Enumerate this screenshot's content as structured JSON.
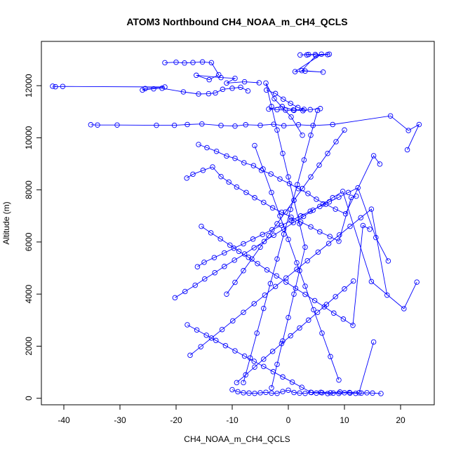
{
  "chart_data": {
    "type": "line",
    "title": "ATOM3 Northbound CH4_NOAA_m_CH4_QCLS",
    "xlabel": "CH4_NOAA_m_CH4_QCLS",
    "ylabel": "Altitude (m)",
    "xlim": [
      -44,
      26
    ],
    "ylim": [
      -250,
      13700
    ],
    "xticks": [
      -40,
      -30,
      -20,
      -10,
      0,
      10,
      20
    ],
    "yticks": [
      0,
      2000,
      4000,
      6000,
      8000,
      10000,
      12000
    ],
    "xtick_labels": [
      "-40",
      "-30",
      "-20",
      "-10",
      "0",
      "10",
      "20"
    ],
    "ytick_labels": [
      "0",
      "2000",
      "4000",
      "6000",
      "8000",
      "10000",
      "12000"
    ],
    "grid": false,
    "legend": "none",
    "marker": "open-circle",
    "color": "#0000ff",
    "series": [
      {
        "x": [
          4.8,
          2.1,
          3.6,
          7.0,
          5.9,
          1.2,
          3.0,
          6.2,
          2.4,
          4.9,
          7.3,
          3.3
        ],
        "y": [
          13200,
          13180,
          13200,
          13190,
          13210,
          12540,
          12560,
          12520,
          12580,
          13150,
          13210,
          13180
        ]
      },
      {
        "x": [
          -22.0,
          -20.0,
          -18.5,
          -17.0,
          -15.3,
          -13.7,
          -12.4,
          -14.1,
          -16.4,
          -12.0,
          -9.5,
          -11.0,
          -7.8,
          -5.2
        ],
        "y": [
          12880,
          12900,
          12870,
          12890,
          12910,
          12880,
          12420,
          12230,
          12400,
          12310,
          12280,
          12100,
          12150,
          12110
        ]
      },
      {
        "x": [
          -42.0,
          -41.5,
          -40.2,
          -22.0,
          -25.5,
          -26.0,
          -24.0,
          -22.5,
          -18.7,
          -16.0,
          -14.2,
          -13.0,
          -11.7,
          -10.0,
          -8.5,
          -7.2
        ],
        "y": [
          11980,
          11960,
          11970,
          11950,
          11890,
          11830,
          11880,
          11900,
          11760,
          11680,
          11690,
          11720,
          11860,
          11900,
          11940,
          11800
        ]
      },
      {
        "x": [
          -3.9,
          -2.3,
          -0.9,
          0.4,
          1.7,
          2.8,
          1.0,
          -0.5,
          -2.0,
          -3.5,
          -1.1,
          0.9,
          2.6,
          3.9,
          5.7
        ],
        "y": [
          11830,
          11700,
          11480,
          11320,
          11160,
          11090,
          11050,
          11060,
          11080,
          11100,
          11200,
          11070,
          11040,
          11080,
          11120
        ]
      },
      {
        "x": [
          -35.2,
          -34.0,
          -30.5,
          -23.5,
          -20.3,
          -18.0,
          -15.4,
          -12.0,
          -9.5,
          -7.6,
          -5.0,
          -2.6,
          -0.8,
          1.8,
          4.4,
          7.9,
          18.2,
          21.4,
          23.3,
          21.2
        ],
        "y": [
          10500,
          10490,
          10490,
          10480,
          10480,
          10510,
          10530,
          10470,
          10450,
          10500,
          10480,
          10520,
          10460,
          10500,
          10470,
          10510,
          10840,
          10280,
          10510,
          9540
        ]
      },
      {
        "x": [
          -16.0,
          -14.5,
          -12.8,
          -11.0,
          -9.5,
          -7.9,
          -6.2,
          -4.8,
          -3.1,
          -1.5,
          0.2,
          1.8,
          3.5,
          5.0,
          6.7,
          8.4,
          10.2,
          15.2,
          16.3
        ],
        "y": [
          9740,
          9620,
          9480,
          9300,
          9210,
          9040,
          8930,
          8750,
          8610,
          8420,
          8240,
          8050,
          7860,
          7640,
          7450,
          7260,
          7080,
          9310,
          8990
        ]
      },
      {
        "x": [
          -18.1,
          -17.0,
          -15.2,
          -13.5,
          -12.0,
          -10.6,
          -9.2,
          -7.5,
          -6.0,
          -4.4,
          -2.8,
          -1.2,
          0.5,
          2.2,
          4.0,
          5.6,
          7.4,
          9.0,
          11.2,
          12.1
        ],
        "y": [
          8450,
          8600,
          8750,
          8880,
          8510,
          8300,
          8110,
          7900,
          7700,
          7520,
          7310,
          7140,
          6950,
          6770,
          6580,
          6390,
          6210,
          6030,
          7710,
          7760
        ]
      },
      {
        "x": [
          -15.5,
          -13.8,
          -12.1,
          -10.4,
          -8.8,
          -7.1,
          -5.5,
          -3.8,
          -2.1,
          -0.4,
          1.3,
          3.0,
          4.7,
          6.4,
          8.1,
          9.8,
          11.5,
          13.3,
          14.5
        ],
        "y": [
          6600,
          6350,
          6120,
          5880,
          5640,
          5410,
          5170,
          4930,
          4700,
          4460,
          4220,
          3990,
          3750,
          3510,
          3270,
          3040,
          2800,
          6630,
          6490
        ]
      },
      {
        "x": [
          -16.2,
          -15.0,
          -13.2,
          -11.4,
          -9.7,
          -8.0,
          -6.3,
          -4.6,
          -2.9,
          -1.2,
          0.5,
          2.2,
          3.9,
          5.6,
          7.3,
          9.0,
          10.7,
          12.4,
          15.6,
          17.8
        ],
        "y": [
          5050,
          5220,
          5400,
          5580,
          5760,
          5930,
          6110,
          6290,
          6470,
          6640,
          6820,
          7000,
          7180,
          7360,
          7540,
          7720,
          7900,
          8080,
          6170,
          5270
        ]
      },
      {
        "x": [
          -20.2,
          -18.4,
          -16.6,
          -14.9,
          -13.1,
          -11.4,
          -9.6,
          -7.8,
          -6.1,
          -4.3,
          -2.6,
          -0.8,
          0.9,
          2.7,
          4.4,
          6.2,
          7.9,
          9.7,
          14.8,
          20.6,
          22.9
        ],
        "y": [
          3860,
          4100,
          4340,
          4580,
          4820,
          5060,
          5300,
          5540,
          5780,
          6020,
          6260,
          6500,
          6740,
          6980,
          7220,
          7460,
          7700,
          7940,
          4480,
          3440,
          4460
        ]
      },
      {
        "x": [
          -17.5,
          -15.6,
          -13.7,
          -11.8,
          -9.9,
          -8.0,
          -6.1,
          -4.2,
          -2.3,
          -0.4,
          1.5,
          3.4,
          5.3,
          7.2,
          9.1,
          11.0,
          12.9,
          14.8,
          17.6
        ],
        "y": [
          1650,
          1980,
          2310,
          2640,
          2970,
          3300,
          3630,
          3960,
          4290,
          4620,
          4950,
          5280,
          5610,
          5940,
          6270,
          6600,
          6930,
          7260,
          3960
        ]
      },
      {
        "x": [
          -18.0,
          -16.3,
          -14.6,
          -12.9,
          -11.2,
          -9.5,
          -7.8,
          -6.1,
          -4.4,
          -2.7,
          -1.0,
          0.7,
          2.4,
          4.1,
          5.8,
          7.5,
          9.2,
          10.9,
          12.6,
          15.2
        ],
        "y": [
          2820,
          2620,
          2420,
          2220,
          2020,
          1820,
          1620,
          1420,
          1220,
          1020,
          820,
          620,
          420,
          220,
          230,
          210,
          240,
          220,
          210,
          2160
        ]
      },
      {
        "x": [
          -10.0,
          -9.0,
          -8.0,
          -7.0,
          -6.0,
          -5.0,
          -4.0,
          -3.0,
          -2.0,
          -1.0,
          0.0,
          1.0,
          2.0,
          3.0,
          4.0,
          5.0,
          6.0,
          7.0,
          8.0,
          9.0,
          10.0,
          11.0,
          12.0,
          13.0,
          14.0,
          15.0,
          16.5
        ],
        "y": [
          330,
          250,
          210,
          200,
          190,
          210,
          230,
          200,
          190,
          260,
          310,
          220,
          200,
          190,
          230,
          200,
          210,
          180,
          200,
          190,
          210,
          200,
          190,
          200,
          210,
          200,
          180
        ]
      },
      {
        "x": [
          -9.2,
          -7.6,
          -6.0,
          -4.4,
          -2.8,
          -1.2,
          0.4,
          2.0,
          3.6,
          5.2,
          6.8,
          8.4,
          10.0,
          11.6
        ],
        "y": [
          600,
          900,
          1200,
          1500,
          1800,
          2100,
          2400,
          2700,
          3000,
          3300,
          3600,
          3900,
          4200,
          4500
        ]
      },
      {
        "x": [
          -11.0,
          -9.5,
          -8.0,
          -6.5,
          -5.0,
          -3.5,
          -2.0,
          -0.5,
          1.0,
          2.5,
          4.0,
          5.5,
          7.0,
          8.5,
          10.0
        ],
        "y": [
          4000,
          4450,
          4900,
          5350,
          5800,
          6250,
          6700,
          7150,
          7600,
          8050,
          8500,
          8950,
          9400,
          9850,
          10300
        ]
      },
      {
        "x": [
          -6.0,
          -4.5,
          -3.0,
          -1.5,
          0.0,
          1.5,
          3.0,
          4.5,
          6.0,
          7.5,
          9.0
        ],
        "y": [
          9700,
          8800,
          7900,
          7000,
          6100,
          5200,
          4300,
          3400,
          2500,
          1600,
          700
        ]
      },
      {
        "x": [
          -8.0,
          -6.8,
          -5.6,
          -4.4,
          -3.2,
          -2.0,
          -0.8,
          0.4,
          1.6,
          2.8,
          4.0,
          5.2
        ],
        "y": [
          600,
          1550,
          2500,
          3450,
          4400,
          5350,
          6300,
          7250,
          8200,
          9150,
          10100,
          11050
        ]
      },
      {
        "x": [
          -3.0,
          -2.0,
          -1.0,
          0.0,
          1.0,
          2.0,
          3.0,
          2.0,
          1.0,
          0.0,
          -1.0,
          -2.0,
          -3.0,
          -4.0,
          -2.5,
          0.5,
          2.5
        ],
        "y": [
          400,
          1300,
          2200,
          3100,
          4000,
          4900,
          5800,
          6700,
          7600,
          8500,
          9400,
          10300,
          11200,
          12100,
          11500,
          10800,
          10100
        ]
      }
    ]
  }
}
